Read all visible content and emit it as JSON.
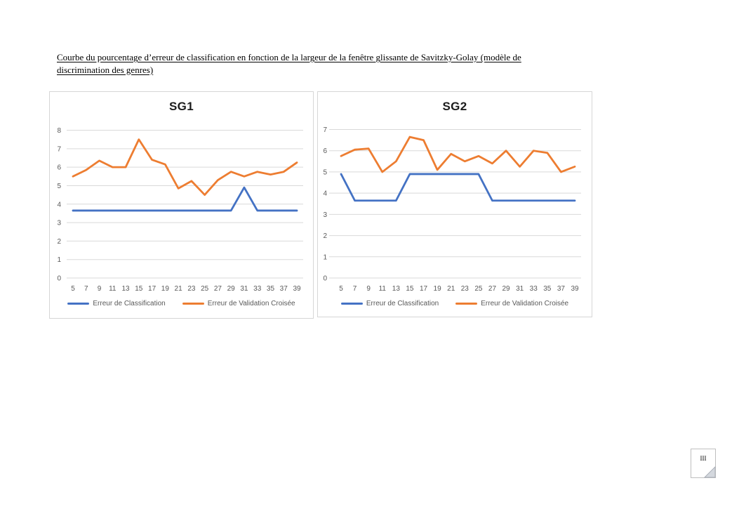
{
  "document": {
    "heading": "Courbe du pourcentage d’erreur de classification en fonction de la largeur de la fenêtre glissante de Savitzky-Golay (modèle de discrimination des genres)",
    "page_number": "III"
  },
  "chart_data": [
    {
      "type": "line",
      "title": "SG1",
      "xlabel": "",
      "ylabel": "",
      "ylim": [
        0,
        8
      ],
      "ytick_step": 1,
      "grid": true,
      "legend_position": "bottom",
      "categories": [
        5,
        7,
        9,
        11,
        13,
        15,
        17,
        19,
        21,
        23,
        25,
        27,
        29,
        31,
        33,
        35,
        37,
        39
      ],
      "series": [
        {
          "name": "Erreur de Classification",
          "color": "#4472C4",
          "values": [
            3.65,
            3.65,
            3.65,
            3.65,
            3.65,
            3.65,
            3.65,
            3.65,
            3.65,
            3.65,
            3.65,
            3.65,
            3.65,
            4.9,
            3.65,
            3.65,
            3.65,
            3.65
          ]
        },
        {
          "name": "Erreur de Validation Croisée",
          "color": "#ED7D31",
          "values": [
            5.5,
            5.85,
            6.35,
            6.0,
            6.0,
            7.5,
            6.4,
            6.15,
            4.85,
            5.25,
            4.5,
            5.3,
            5.75,
            5.5,
            5.75,
            5.6,
            5.75,
            6.25
          ]
        }
      ]
    },
    {
      "type": "line",
      "title": "SG2",
      "xlabel": "",
      "ylabel": "",
      "ylim": [
        0,
        7
      ],
      "ytick_step": 1,
      "grid": true,
      "legend_position": "bottom",
      "categories": [
        5,
        7,
        9,
        11,
        13,
        15,
        17,
        19,
        21,
        23,
        25,
        27,
        29,
        31,
        33,
        35,
        37,
        39
      ],
      "series": [
        {
          "name": "Erreur de Classification",
          "color": "#4472C4",
          "values": [
            4.9,
            3.65,
            3.65,
            3.65,
            3.65,
            4.9,
            4.9,
            4.9,
            4.9,
            4.9,
            4.9,
            3.65,
            3.65,
            3.65,
            3.65,
            3.65,
            3.65,
            3.65
          ]
        },
        {
          "name": "Erreur de Validation Croisée",
          "color": "#ED7D31",
          "values": [
            5.75,
            6.05,
            6.1,
            5.0,
            5.5,
            6.65,
            6.5,
            5.1,
            5.85,
            5.5,
            5.75,
            5.4,
            6.0,
            5.25,
            6.0,
            5.9,
            5.0,
            5.25
          ]
        }
      ]
    }
  ]
}
